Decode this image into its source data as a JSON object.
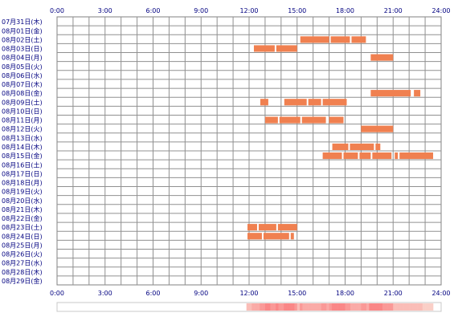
{
  "chart_data": {
    "type": "timeline",
    "title": "",
    "xlabel": "",
    "ylabel": "",
    "x_ticks": [
      "0:00",
      "3:00",
      "6:00",
      "9:00",
      "12:00",
      "15:00",
      "18:00",
      "21:00",
      "24:00"
    ],
    "xlim": [
      0,
      24
    ],
    "grid": true,
    "bar_color": "#f08050",
    "bar_color_light": "#f49a70",
    "rows": [
      {
        "label": "07月31日(木)",
        "segments": []
      },
      {
        "label": "08月01日(金)",
        "segments": []
      },
      {
        "label": "08月02日(土)",
        "segments": [
          [
            15.2,
            17.0
          ],
          [
            17.1,
            18.3
          ],
          [
            18.4,
            19.3
          ]
        ]
      },
      {
        "label": "08月03日(日)",
        "segments": [
          [
            12.3,
            13.6
          ],
          [
            13.7,
            15.0
          ]
        ]
      },
      {
        "label": "08月04日(月)",
        "segments": [
          [
            19.6,
            21.0
          ]
        ]
      },
      {
        "label": "08月05日(火)",
        "segments": []
      },
      {
        "label": "08月06日(水)",
        "segments": []
      },
      {
        "label": "08月07日(木)",
        "segments": []
      },
      {
        "label": "08月08日(金)",
        "segments": [
          [
            19.6,
            22.1
          ],
          [
            22.3,
            22.7
          ]
        ]
      },
      {
        "label": "08月09日(土)",
        "segments": [
          [
            12.7,
            13.2
          ],
          [
            14.2,
            15.6
          ],
          [
            15.7,
            16.5
          ],
          [
            16.6,
            18.1
          ]
        ]
      },
      {
        "label": "08月10日(日)",
        "segments": []
      },
      {
        "label": "08月11日(月)",
        "segments": [
          [
            13.0,
            13.8
          ],
          [
            13.9,
            15.2
          ],
          [
            15.3,
            16.8
          ],
          [
            17.0,
            17.9
          ]
        ]
      },
      {
        "label": "08月12日(火)",
        "segments": [
          [
            19.0,
            21.0
          ]
        ]
      },
      {
        "label": "08月13日(水)",
        "segments": []
      },
      {
        "label": "08月14日(木)",
        "segments": [
          [
            17.2,
            18.2
          ],
          [
            18.3,
            19.8
          ],
          [
            19.9,
            20.2
          ]
        ]
      },
      {
        "label": "08月15日(金)",
        "segments": [
          [
            16.6,
            17.8
          ],
          [
            17.9,
            18.8
          ],
          [
            18.9,
            19.6
          ],
          [
            19.7,
            20.9
          ],
          [
            21.1,
            21.3
          ],
          [
            21.4,
            23.5
          ]
        ]
      },
      {
        "label": "08月16日(土)",
        "segments": []
      },
      {
        "label": "08月17日(日)",
        "segments": []
      },
      {
        "label": "08月18日(月)",
        "segments": []
      },
      {
        "label": "08月19日(火)",
        "segments": []
      },
      {
        "label": "08月20日(水)",
        "segments": []
      },
      {
        "label": "08月21日(木)",
        "segments": []
      },
      {
        "label": "08月22日(金)",
        "segments": []
      },
      {
        "label": "08月23日(土)",
        "segments": [
          [
            11.9,
            12.5
          ],
          [
            12.6,
            13.7
          ],
          [
            13.8,
            15.0
          ]
        ]
      },
      {
        "label": "08月24日(日)",
        "segments": [
          [
            11.9,
            12.8
          ],
          [
            12.9,
            14.5
          ],
          [
            14.6,
            14.8
          ]
        ]
      },
      {
        "label": "08月25日(月)",
        "segments": []
      },
      {
        "label": "08月26日(火)",
        "segments": []
      },
      {
        "label": "08月27日(水)",
        "segments": []
      },
      {
        "label": "08月28日(木)",
        "segments": []
      },
      {
        "label": "08月29日(金)",
        "segments": []
      }
    ]
  }
}
